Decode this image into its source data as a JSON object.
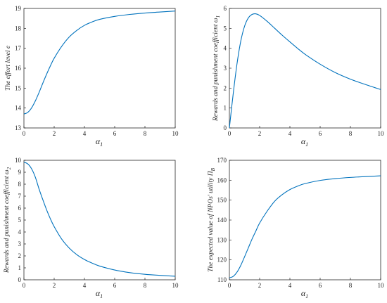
{
  "chart_data": [
    {
      "type": "line",
      "xlabel_main": "α",
      "xlabel_sub": "1",
      "ylabel_main": "The effort level e",
      "ylabel_sub": "",
      "xlim": [
        0,
        10
      ],
      "ylim": [
        13,
        19
      ],
      "xticks": [
        0,
        2,
        4,
        6,
        8,
        10
      ],
      "yticks": [
        13,
        14,
        15,
        16,
        17,
        18,
        19
      ],
      "color": "#0072BD",
      "grid": false,
      "x": [
        0,
        0.25,
        0.5,
        0.75,
        1.0,
        1.25,
        1.5,
        1.75,
        2.0,
        2.5,
        3.0,
        3.5,
        4.0,
        4.5,
        5.0,
        6.0,
        7.0,
        8.0,
        9.0,
        10.0
      ],
      "y": [
        13.7,
        13.78,
        14.0,
        14.35,
        14.78,
        15.25,
        15.7,
        16.12,
        16.5,
        17.1,
        17.57,
        17.9,
        18.15,
        18.32,
        18.45,
        18.6,
        18.7,
        18.77,
        18.82,
        18.87
      ]
    },
    {
      "type": "line",
      "xlabel_main": "α",
      "xlabel_sub": "1",
      "ylabel_main": "Rewards and punishment coefficient ω",
      "ylabel_sub": "1",
      "xlim": [
        0,
        10
      ],
      "ylim": [
        0,
        6
      ],
      "xticks": [
        0,
        2,
        4,
        6,
        8,
        10
      ],
      "yticks": [
        0,
        1,
        2,
        3,
        4,
        5,
        6
      ],
      "color": "#0072BD",
      "grid": false,
      "x": [
        0,
        0.25,
        0.5,
        0.75,
        1.0,
        1.25,
        1.5,
        1.75,
        2.0,
        2.5,
        3.0,
        3.5,
        4.0,
        4.5,
        5.0,
        6.0,
        7.0,
        8.0,
        9.0,
        10.0
      ],
      "y": [
        0,
        1.7,
        3.2,
        4.35,
        5.1,
        5.52,
        5.7,
        5.73,
        5.65,
        5.35,
        5.0,
        4.65,
        4.32,
        4.0,
        3.7,
        3.2,
        2.78,
        2.45,
        2.18,
        1.93
      ]
    },
    {
      "type": "line",
      "xlabel_main": "α",
      "xlabel_sub": "1",
      "ylabel_main": "Rewards and punishment coefficient ω",
      "ylabel_sub": "2",
      "xlim": [
        0,
        10
      ],
      "ylim": [
        0,
        10
      ],
      "xticks": [
        0,
        2,
        4,
        6,
        8,
        10
      ],
      "yticks": [
        0,
        1,
        2,
        3,
        4,
        5,
        6,
        7,
        8,
        9,
        10
      ],
      "color": "#0072BD",
      "grid": false,
      "x": [
        0,
        0.25,
        0.5,
        0.75,
        1.0,
        1.25,
        1.5,
        1.75,
        2.0,
        2.5,
        3.0,
        3.5,
        4.0,
        4.5,
        5.0,
        6.0,
        7.0,
        8.0,
        9.0,
        10.0
      ],
      "y": [
        9.85,
        9.7,
        9.3,
        8.6,
        7.6,
        6.7,
        5.85,
        5.1,
        4.45,
        3.4,
        2.65,
        2.1,
        1.7,
        1.4,
        1.15,
        0.82,
        0.6,
        0.46,
        0.37,
        0.3
      ]
    },
    {
      "type": "line",
      "xlabel_main": "α",
      "xlabel_sub": "1",
      "ylabel_main": "The expected value of NPOs' utility Π",
      "ylabel_sub": "B",
      "xlim": [
        0,
        10
      ],
      "ylim": [
        110,
        170
      ],
      "xticks": [
        0,
        2,
        4,
        6,
        8,
        10
      ],
      "yticks": [
        110,
        120,
        130,
        140,
        150,
        160,
        170
      ],
      "color": "#0072BD",
      "grid": false,
      "x": [
        0,
        0.25,
        0.5,
        0.75,
        1.0,
        1.25,
        1.5,
        1.75,
        2.0,
        2.5,
        3.0,
        3.5,
        4.0,
        4.5,
        5.0,
        6.0,
        7.0,
        8.0,
        9.0,
        10.0
      ],
      "y": [
        111,
        111.7,
        113.8,
        117.2,
        121.5,
        126.0,
        130.5,
        134.5,
        138.5,
        144.5,
        149.5,
        152.8,
        155.3,
        157.0,
        158.3,
        159.9,
        160.8,
        161.4,
        161.8,
        162.2
      ]
    }
  ]
}
